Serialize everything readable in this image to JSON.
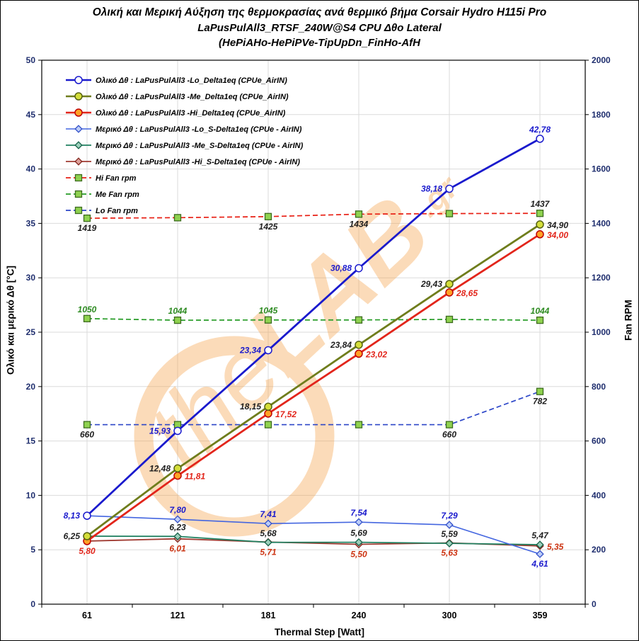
{
  "title": {
    "line1": "Ολική και Μερική Αύξηση της θερμοκρασίας ανά θερμικό βήμα   Corsair Hydro H115i Pro",
    "line2": "LaPusPulAll3_RTSF_240W@S4  CPU Δθο Lateral",
    "line3": "(HePiAHo-HePiPVe-TipUpDn_FinHo-AfH"
  },
  "watermark": {
    "text_light": "the",
    "text_bold": "LAB",
    "suffix": ".gr",
    "color": "#F59E40"
  },
  "chart_data": {
    "type": "line",
    "x_categories": [
      "61",
      "121",
      "181",
      "240",
      "300",
      "359"
    ],
    "xlabel": "Thermal Step [Watt]",
    "ylabel_left": "Ολικό και μερικό Δθ [°C]",
    "ylabel_right": "Fan RPM",
    "ylim_left": [
      0,
      50
    ],
    "ytick_left": 5,
    "ylim_right": [
      0,
      2000
    ],
    "ytick_right": 200,
    "grid": true,
    "legend_position": "top-left",
    "styles": {
      "grid_color": "#DBDBDB",
      "plot_border_color": "#000000",
      "tick_label_color": "#1F2E6E",
      "x_tick_label_color": "#000000"
    },
    "series": [
      {
        "name": "Ολικό Δθ : LaPusPulAll3 -Lo_Delta1eq (CPUe_AirIN)",
        "axis": "left",
        "color": "#1A1ACD",
        "line_width": 2.8,
        "dash": null,
        "marker": "circle",
        "marker_fill": "#FFFFFF",
        "marker_stroke": "#1A1ACD",
        "values": [
          8.13,
          15.93,
          23.34,
          30.88,
          38.18,
          42.78
        ],
        "labels": [
          "8,13",
          "15,93",
          "23,34",
          "30,88",
          "38,18",
          "42,78"
        ],
        "label_color": "#1A1ACD",
        "label_pos": [
          "left",
          "left",
          "left",
          "left",
          "left",
          "above"
        ]
      },
      {
        "name": "Ολικό Δθ : LaPusPulAll3 -Me_Delta1eq (CPUe_AirIN)",
        "axis": "left",
        "color": "#6F7D1C",
        "line_width": 2.8,
        "dash": null,
        "marker": "circle",
        "marker_fill": "#D4DE3A",
        "marker_stroke": "#556112",
        "values": [
          6.25,
          12.48,
          18.15,
          23.84,
          29.43,
          34.9
        ],
        "labels": [
          "6,25",
          "12,48",
          "18,15",
          "23,84",
          "29,43",
          "34,90"
        ],
        "label_color": "#1D1D1D",
        "label_pos": [
          "left",
          "left",
          "left",
          "left",
          "left",
          "right"
        ]
      },
      {
        "name": "Ολικό Δθ : LaPusPulAll3 -Hi_Delta1eq (CPUe_AirIN)",
        "axis": "left",
        "color": "#E2251B",
        "line_width": 2.8,
        "dash": null,
        "marker": "circle",
        "marker_fill": "#FFA126",
        "marker_stroke": "#C00000",
        "values": [
          5.8,
          11.81,
          17.52,
          23.02,
          28.65,
          34.0
        ],
        "labels": [
          "5,80",
          "11,81",
          "17,52",
          "23,02",
          "28,65",
          "34,00"
        ],
        "label_color": "#E2251B",
        "label_pos": [
          "below",
          "right",
          "right",
          "right",
          "right",
          "right"
        ]
      },
      {
        "name": "Μερικό Δθ : LaPusPulAll3 -Lo_S-Delta1eq (CPUe - AirIN)",
        "axis": "left",
        "color": "#4466E0",
        "line_width": 1.6,
        "dash": null,
        "marker": "diamond",
        "marker_fill": "#BCCDF8",
        "marker_stroke": "#3350C8",
        "values": [
          8.13,
          7.8,
          7.41,
          7.54,
          7.29,
          4.61
        ],
        "labels": [
          "",
          "7,80",
          "7,41",
          "7,54",
          "7,29",
          "4,61"
        ],
        "label_color": "#1A1ACD",
        "label_pos": [
          "above",
          "above",
          "above",
          "above",
          "above",
          "below"
        ]
      },
      {
        "name": "Μερικό Δθ : LaPusPulAll3 -Me_S-Delta1eq (CPUe - AirIN)",
        "axis": "left",
        "color": "#1F8060",
        "line_width": 1.8,
        "dash": null,
        "marker": "diamond",
        "marker_fill": "#9CCFBB",
        "marker_stroke": "#166249",
        "values": [
          6.25,
          6.23,
          5.68,
          5.69,
          5.59,
          5.47
        ],
        "labels": [
          "",
          "6,23",
          "5,68",
          "5,69",
          "5,59",
          "5,47"
        ],
        "label_color": "#1D1D1D",
        "label_pos": [
          "above",
          "above",
          "above",
          "above",
          "above",
          "above"
        ]
      },
      {
        "name": "Μερικό Δθ : LaPusPulAll3 -Hi_S-Delta1eq (CPUe - AirIN)",
        "axis": "left",
        "color": "#A03B32",
        "line_width": 1.8,
        "dash": null,
        "marker": "diamond",
        "marker_fill": "#DCA09A",
        "marker_stroke": "#84281F",
        "values": [
          5.8,
          6.01,
          5.71,
          5.5,
          5.63,
          5.35
        ],
        "labels": [
          "",
          "6,01",
          "5,71",
          "5,50",
          "5,63",
          "5,35"
        ],
        "label_color": "#CC3311",
        "label_pos": [
          "below",
          "below",
          "below",
          "below",
          "below",
          "right"
        ]
      },
      {
        "name": "Hi Fan rpm",
        "axis": "right",
        "color": "#E82015",
        "line_width": 1.7,
        "dash": "7,4",
        "marker": "square",
        "marker_fill": "#8FD24F",
        "marker_stroke": "#3C6B1E",
        "values": [
          1419,
          1421,
          1425,
          1434,
          1436,
          1437
        ],
        "labels": [
          "1419",
          "",
          "1425",
          "1434",
          "",
          "1437"
        ],
        "label_color": "#1D1D1D",
        "label_pos": [
          "below",
          "below",
          "below",
          "below",
          "below",
          "above"
        ]
      },
      {
        "name": "Me Fan rpm",
        "axis": "right",
        "color": "#259B25",
        "line_width": 1.7,
        "dash": "7,4",
        "marker": "square",
        "marker_fill": "#8FD24F",
        "marker_stroke": "#3C6B1E",
        "values": [
          1050,
          1044,
          1045,
          1045,
          1047,
          1044
        ],
        "labels": [
          "1050",
          "1044",
          "1045",
          "",
          "",
          "1044"
        ],
        "label_color": "#2E8B22",
        "label_pos": [
          "above",
          "above",
          "above",
          "above",
          "above",
          "above"
        ]
      },
      {
        "name": "Lo Fan rpm",
        "axis": "right",
        "color": "#2C46C8",
        "line_width": 1.7,
        "dash": "7,4",
        "marker": "square",
        "marker_fill": "#8FD24F",
        "marker_stroke": "#3C6B1E",
        "values": [
          660,
          660,
          660,
          660,
          660,
          782
        ],
        "labels": [
          "660",
          "",
          "",
          "",
          "660",
          "782"
        ],
        "label_color": "#1D1D1D",
        "label_pos": [
          "below",
          "below",
          "below",
          "below",
          "below",
          "below"
        ]
      }
    ]
  }
}
